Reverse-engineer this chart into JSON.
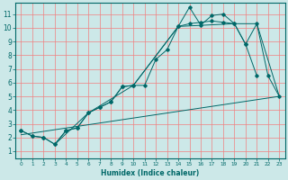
{
  "xlabel": "Humidex (Indice chaleur)",
  "xlim": [
    -0.5,
    23.5
  ],
  "ylim": [
    0.5,
    11.8
  ],
  "bg_color": "#cce8e8",
  "line_color": "#006868",
  "grid_color": "#f08080",
  "line_main": {
    "x": [
      0,
      1,
      2,
      3,
      4,
      5,
      6,
      7,
      8,
      9,
      10,
      11,
      12,
      13,
      14,
      15,
      16,
      17,
      18,
      19,
      20,
      21
    ],
    "y": [
      2.5,
      2.1,
      2.0,
      1.5,
      2.5,
      2.7,
      3.8,
      4.2,
      4.6,
      5.7,
      5.8,
      5.8,
      7.7,
      8.4,
      10.1,
      11.5,
      10.2,
      10.9,
      11.0,
      10.3,
      8.8,
      6.5
    ]
  },
  "line_lower": {
    "x": [
      0,
      1,
      2,
      3,
      4,
      5,
      6,
      7,
      8,
      9,
      10,
      14,
      15,
      16,
      17,
      18,
      19,
      20,
      21,
      22,
      23
    ],
    "y": [
      2.5,
      2.1,
      2.0,
      1.5,
      2.5,
      2.7,
      3.8,
      4.2,
      4.6,
      5.7,
      5.8,
      10.1,
      10.3,
      10.4,
      10.5,
      10.4,
      10.3,
      8.8,
      10.3,
      6.5,
      5.0
    ]
  },
  "line_straight": {
    "x": [
      0,
      23
    ],
    "y": [
      2.2,
      5.0
    ]
  },
  "line_envelope": {
    "x": [
      3,
      6,
      10,
      14,
      19,
      21,
      23
    ],
    "y": [
      1.5,
      3.8,
      5.8,
      10.1,
      10.3,
      10.3,
      5.0
    ]
  },
  "xticks": [
    0,
    1,
    2,
    3,
    4,
    5,
    6,
    7,
    8,
    9,
    10,
    11,
    12,
    13,
    14,
    15,
    16,
    17,
    18,
    19,
    20,
    21,
    22,
    23
  ],
  "yticks": [
    1,
    2,
    3,
    4,
    5,
    6,
    7,
    8,
    9,
    10,
    11
  ],
  "xlabel_fontsize": 5.5,
  "tick_fontsize_x": 4.2,
  "tick_fontsize_y": 5.5
}
